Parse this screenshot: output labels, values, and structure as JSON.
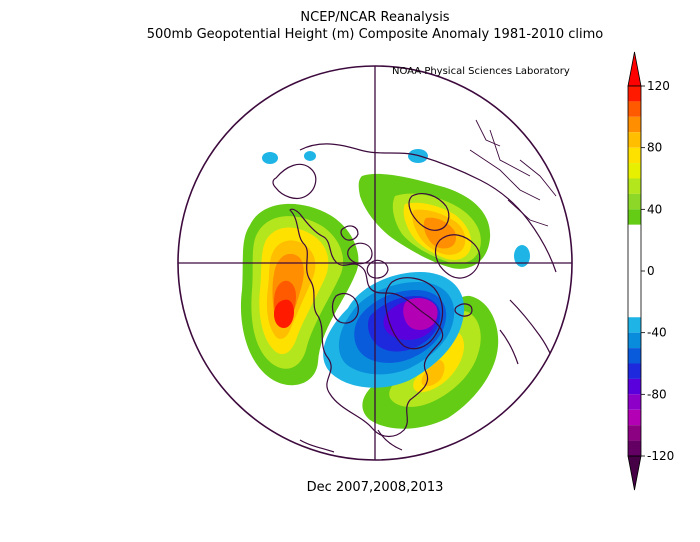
{
  "header": {
    "title_line1": "NCEP/NCAR Reanalysis",
    "title_line2": "500mb Geopotential Height (m) Composite Anomaly 1981-2010 climo",
    "credit": "NOAA Physical Sciences Laboratory"
  },
  "footer": {
    "period": "Dec 2007,2008,2013"
  },
  "map": {
    "projection": "polar-stereographic-north",
    "variable": "500mb geopotential height anomaly",
    "units": "m",
    "colors": {
      "boundary": "#3d0a3d",
      "ocean": "#ffffff"
    },
    "anomaly_regions": [
      {
        "region": "northeast Pacific / west of North America",
        "sign": "positive",
        "peak_m": 120,
        "color": "#ff2400"
      },
      {
        "region": "Scandinavia / western Europe",
        "sign": "positive",
        "peak_m": 100
      },
      {
        "region": "Greenland / Canadian Arctic",
        "sign": "negative",
        "peak_m": -110
      },
      {
        "region": "North Atlantic east of US",
        "sign": "positive",
        "peak_m": 80
      },
      {
        "region": "western Russia",
        "sign": "negative",
        "peak_m": -40
      },
      {
        "region": "Bering region",
        "sign": "negative",
        "peak_m": -40
      }
    ]
  },
  "colorbar": {
    "orientation": "vertical",
    "min": -120,
    "max": 120,
    "tick_labels": [
      "120",
      "80",
      "40",
      "0",
      "-40",
      "-80",
      "-120"
    ],
    "bins": [
      {
        "from": 110,
        "to": 120,
        "color": "#ff1a00"
      },
      {
        "from": 100,
        "to": 110,
        "color": "#ff5a00"
      },
      {
        "from": 90,
        "to": 100,
        "color": "#ff8e00"
      },
      {
        "from": 80,
        "to": 90,
        "color": "#ffbe00"
      },
      {
        "from": 70,
        "to": 80,
        "color": "#ffe100"
      },
      {
        "from": 60,
        "to": 70,
        "color": "#e6f000"
      },
      {
        "from": 50,
        "to": 60,
        "color": "#b4e61e"
      },
      {
        "from": 40,
        "to": 50,
        "color": "#8cd728"
      },
      {
        "from": 30,
        "to": 40,
        "color": "#64cc14"
      },
      {
        "from": 20,
        "to": 30,
        "color": "#ffffff"
      },
      {
        "from": 10,
        "to": 20,
        "color": "#ffffff"
      },
      {
        "from": 0,
        "to": 10,
        "color": "#ffffff"
      },
      {
        "from": -10,
        "to": 0,
        "color": "#ffffff"
      },
      {
        "from": -20,
        "to": -10,
        "color": "#ffffff"
      },
      {
        "from": -30,
        "to": -20,
        "color": "#ffffff"
      },
      {
        "from": -40,
        "to": -30,
        "color": "#1eb4e6"
      },
      {
        "from": -50,
        "to": -40,
        "color": "#0a8cdc"
      },
      {
        "from": -60,
        "to": -50,
        "color": "#0a5adc"
      },
      {
        "from": -70,
        "to": -60,
        "color": "#1e28dc"
      },
      {
        "from": -80,
        "to": -70,
        "color": "#5a00dc"
      },
      {
        "from": -90,
        "to": -80,
        "color": "#8c00c8"
      },
      {
        "from": -100,
        "to": -90,
        "color": "#b400b4"
      },
      {
        "from": -110,
        "to": -100,
        "color": "#8c0082"
      },
      {
        "from": -120,
        "to": -110,
        "color": "#640064"
      }
    ],
    "end_arrow_top_color": "#ff0000",
    "end_arrow_bottom_color": "#460046"
  }
}
